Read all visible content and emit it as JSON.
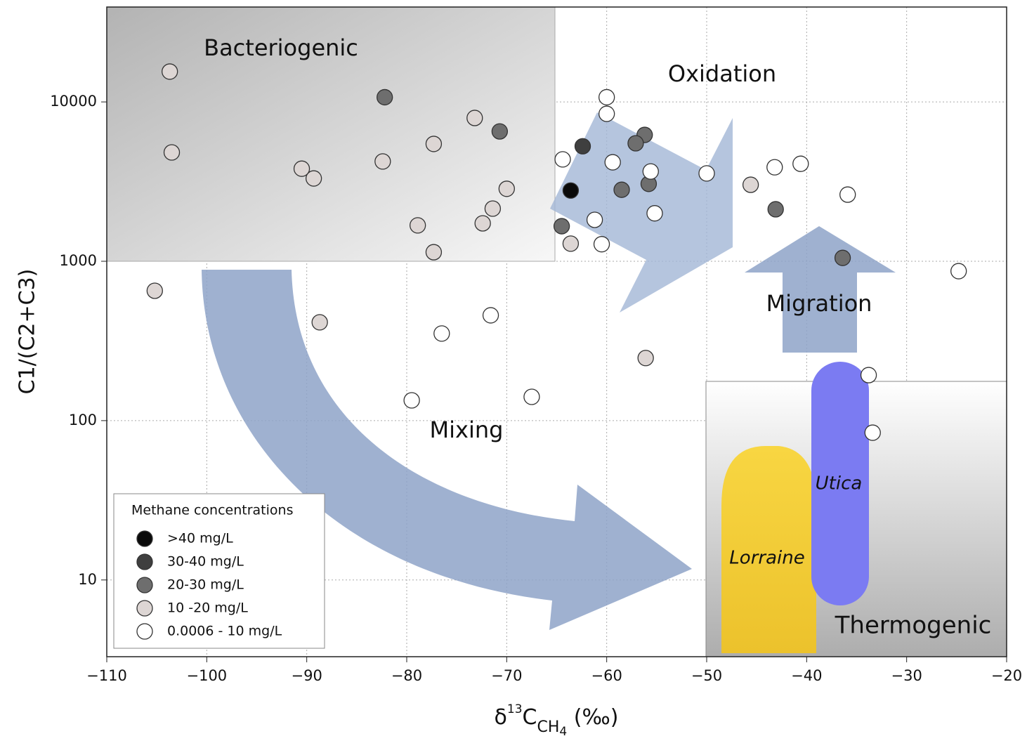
{
  "chart_data": {
    "type": "scatter",
    "y_label": "C1/(C2+C3)",
    "x_label_parts": [
      "δ",
      "13",
      "C",
      "CH",
      "4",
      " (‰)"
    ],
    "xlim": [
      -110,
      -20
    ],
    "xticks": [
      {
        "value": -110,
        "label": "−110"
      },
      {
        "value": -100,
        "label": "−100"
      },
      {
        "value": -90,
        "label": "−90"
      },
      {
        "value": -80,
        "label": "−80"
      },
      {
        "value": -70,
        "label": "−70"
      },
      {
        "value": -60,
        "label": "−60"
      },
      {
        "value": -50,
        "label": "−50"
      },
      {
        "value": -40,
        "label": "−40"
      },
      {
        "value": -30,
        "label": "−30"
      },
      {
        "value": -20,
        "label": "−20"
      }
    ],
    "ylim": [
      3.3,
      39400
    ],
    "yticks": [
      10,
      100,
      1000,
      10000
    ],
    "y_log": true,
    "grid": true,
    "legend_title": "Methane concentrations",
    "legend_position": "lower left",
    "annotations": {
      "bacteriogenic": "Bacteriogenic",
      "oxidation": "Oxidation",
      "migration": "Migration",
      "mixing": "Mixing",
      "thermogenic": "Thermogenic",
      "lorraine": "Lorraine",
      "utica": "Utica"
    },
    "series": [
      {
        "name": ">40 mg/L",
        "color": "#0a0a0a",
        "x": [
          -63.6
        ],
        "values": [
          2780
        ]
      },
      {
        "name": "30-40 mg/L",
        "color": "#3f3f3f",
        "x": [
          -62.4
        ],
        "values": [
          5270
        ]
      },
      {
        "name": "20-30 mg/L",
        "color": "#6e6e6e",
        "x": [
          -82.2,
          -70.7,
          -64.5,
          -58.5,
          -56.2,
          -57.1,
          -55.8,
          -43.1,
          -36.4
        ],
        "values": [
          10700,
          6530,
          1660,
          2810,
          6210,
          5500,
          3060,
          2120,
          1050
        ]
      },
      {
        "name": "10 -20 mg/L",
        "color": "#ddd6d4",
        "x": [
          -103.7,
          -103.5,
          -90.5,
          -89.3,
          -82.4,
          -77.3,
          -73.2,
          -70.0,
          -71.4,
          -72.4,
          -78.9,
          -77.3,
          -105.2,
          -88.7,
          -56.1,
          -63.6,
          -45.6
        ],
        "values": [
          15500,
          4820,
          3810,
          3310,
          4230,
          5450,
          7930,
          2850,
          2140,
          1730,
          1680,
          1140,
          653,
          414,
          247,
          1290,
          3020
        ]
      },
      {
        "name": "0.0006 - 10 mg/L",
        "color": "#ffffff",
        "x": [
          -76.5,
          -71.6,
          -79.5,
          -67.5,
          -64.4,
          -61.2,
          -60.5,
          -60.0,
          -60.0,
          -59.4,
          -55.6,
          -55.2,
          -50.0,
          -43.2,
          -40.6,
          -35.9,
          -24.8,
          -33.8,
          -33.4
        ],
        "values": [
          352,
          458,
          134,
          141,
          4360,
          1820,
          1280,
          10700,
          8420,
          4180,
          3660,
          2000,
          3560,
          3890,
          4090,
          2620,
          867,
          193,
          84
        ]
      }
    ]
  }
}
